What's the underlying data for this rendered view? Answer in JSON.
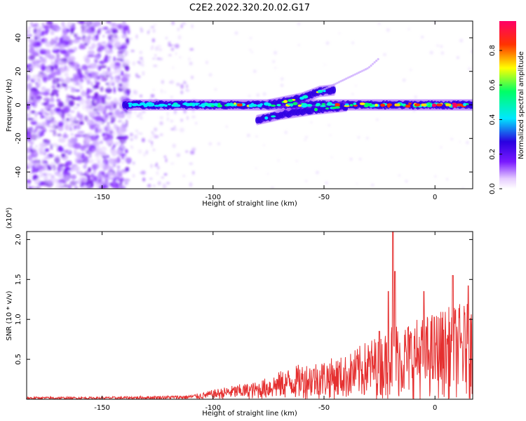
{
  "title": "C2E2.2022.320.20.02.G17",
  "chart_data": [
    {
      "type": "heatmap",
      "xlabel": "Height of straight line (km)",
      "ylabel": "Frequency (Hz)",
      "xlim": [
        -184,
        17
      ],
      "ylim": [
        -50,
        50
      ],
      "xticks": [
        -150,
        -100,
        -50,
        0
      ],
      "yticks": [
        -40,
        -20,
        0,
        20,
        40
      ],
      "colorbar": {
        "label": "Normalized spectral amplitude",
        "range": [
          0,
          0.97
        ],
        "ticks": [
          0.0,
          0.2,
          0.4,
          0.6,
          0.8
        ],
        "colors": [
          "#ffffff",
          "#e6ccff",
          "#7a1aff",
          "#2a00e0",
          "#00e8ff",
          "#00ff66",
          "#ffff00",
          "#ff3300",
          "#ff0066"
        ]
      },
      "signal_band": {
        "x_start": -140,
        "x_end": 17,
        "center_hz": 0,
        "upper_branch": [
          [
            -75,
            0
          ],
          [
            -60,
            4
          ],
          [
            -52,
            8
          ],
          [
            -45,
            9
          ]
        ],
        "lower_branch": [
          [
            -80,
            -9
          ],
          [
            -70,
            -6
          ],
          [
            -55,
            -3
          ],
          [
            -40,
            -1
          ]
        ],
        "harmonic_trace": [
          [
            -52,
            8
          ],
          [
            -30,
            22
          ],
          [
            -25,
            28
          ]
        ]
      }
    },
    {
      "type": "line",
      "xlabel": "Height of straight line (km)",
      "ylabel": "SNR (10 * v/v)",
      "y_multiplier": "(x10⁴)",
      "xlim": [
        -184,
        17
      ],
      "ylim": [
        0,
        2.1
      ],
      "xticks": [
        -150,
        -100,
        -50,
        0
      ],
      "yticks": [
        0.5,
        1.0,
        1.5,
        2.0
      ],
      "ytick_labels": [
        "0.5",
        "1.0",
        "1.5",
        "2.0"
      ],
      "series": [
        {
          "color": "#e53030",
          "envelope": [
            [
              -184,
              0.03
            ],
            [
              -150,
              0.03
            ],
            [
              -130,
              0.04
            ],
            [
              -112,
              0.05
            ],
            [
              -105,
              0.08
            ],
            [
              -100,
              0.12
            ],
            [
              -90,
              0.18
            ],
            [
              -80,
              0.22
            ],
            [
              -70,
              0.35
            ],
            [
              -60,
              0.45
            ],
            [
              -50,
              0.5
            ],
            [
              -40,
              0.55
            ],
            [
              -30,
              0.75
            ],
            [
              -22,
              0.85
            ],
            [
              -19,
              1.0
            ],
            [
              -15,
              0.95
            ],
            [
              -10,
              1.0
            ],
            [
              -5,
              1.05
            ],
            [
              0,
              1.1
            ],
            [
              5,
              1.15
            ],
            [
              10,
              1.2
            ],
            [
              17,
              1.2
            ]
          ],
          "peaks": [
            [
              -25,
              0.85
            ],
            [
              -21,
              1.35
            ],
            [
              -19,
              2.1
            ],
            [
              -18,
              1.6
            ],
            [
              -5,
              1.35
            ],
            [
              8,
              1.55
            ],
            [
              15,
              1.42
            ]
          ]
        }
      ]
    }
  ]
}
